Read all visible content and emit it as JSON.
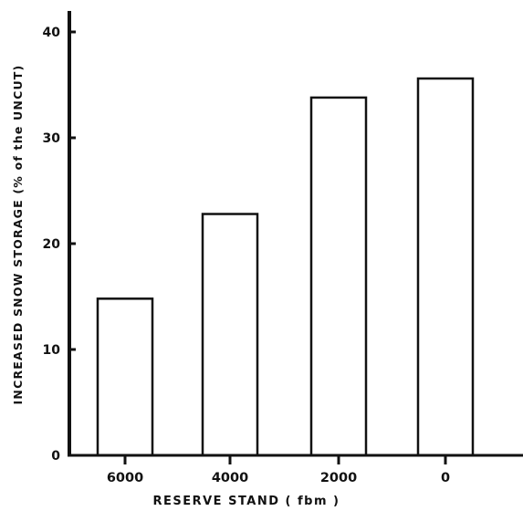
{
  "chart_data": {
    "type": "bar",
    "categories": [
      "6000",
      "4000",
      "2000",
      "0"
    ],
    "values": [
      14.8,
      22.8,
      33.8,
      35.6
    ],
    "xlabel": "RESERVE STAND ( fbm )",
    "ylabel": "INCREASED SNOW STORAGE (% of the UNCUT)",
    "ylim": [
      0,
      40
    ],
    "yticks": [
      0,
      10,
      20,
      30,
      40
    ],
    "grid": false,
    "legend": "none",
    "colors": {
      "bar_fill": "#ffffff",
      "bar_stroke": "#111111",
      "axis": "#111111"
    }
  }
}
